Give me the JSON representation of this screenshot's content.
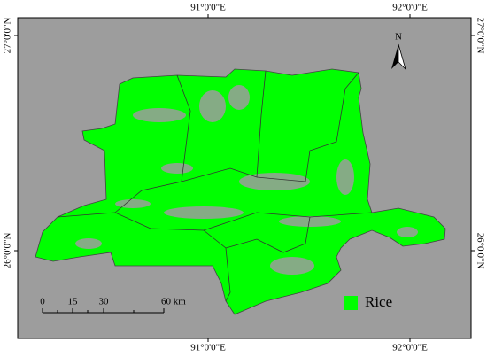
{
  "lon_labels_top": [
    "91°0'0\"E",
    "92°0'0\"E"
  ],
  "lon_labels_bottom": [
    "91°0'0\"E",
    "92°0'0\"E"
  ],
  "lat_labels_left": [
    "27°0'0\"N",
    "26°0'0\"N"
  ],
  "lat_labels_right": [
    "27°0'0\"N",
    "26°0'0\"N"
  ],
  "north_arrow": "N",
  "scale_bar": {
    "labels": [
      "0",
      "15",
      "30",
      "60 km"
    ]
  },
  "legend": {
    "label": "Rice"
  }
}
